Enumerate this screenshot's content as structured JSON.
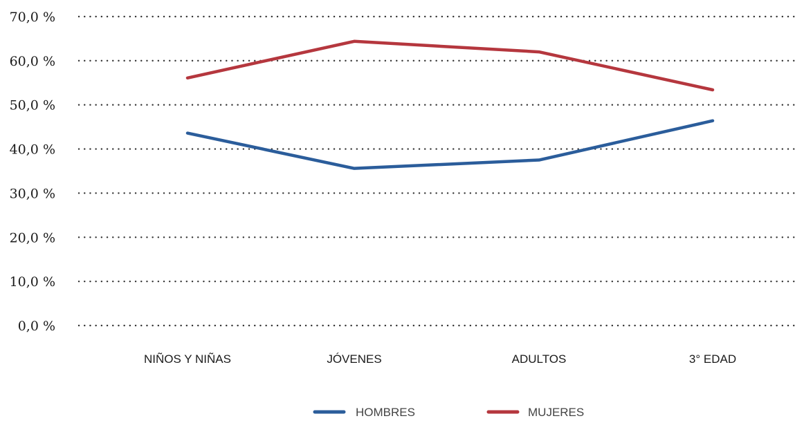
{
  "chart_data": {
    "type": "line",
    "categories": [
      "NIÑOS Y NIÑAS",
      "JÓVENES",
      "ADULTOS",
      "3° EDAD"
    ],
    "series": [
      {
        "name": "HOMBRES",
        "values": [
          43.6,
          35.6,
          37.5,
          46.4
        ],
        "color": "#2b5d9b"
      },
      {
        "name": "MUJERES",
        "values": [
          56.1,
          64.4,
          62.0,
          53.4
        ],
        "color": "#b5373e"
      }
    ],
    "ylim": [
      0,
      70
    ],
    "yticks": [
      {
        "value": 0,
        "label": "0,0 %"
      },
      {
        "value": 10,
        "label": "10,0 %"
      },
      {
        "value": 20,
        "label": "20,0 %"
      },
      {
        "value": 30,
        "label": "30,0 %"
      },
      {
        "value": 40,
        "label": "40,0 %"
      },
      {
        "value": 50,
        "label": "50,0 %"
      },
      {
        "value": 60,
        "label": "60,0 %"
      },
      {
        "value": 70,
        "label": "70,0 %"
      }
    ],
    "grid": true,
    "grid_style": "dotted",
    "legend_position": "bottom-center"
  }
}
